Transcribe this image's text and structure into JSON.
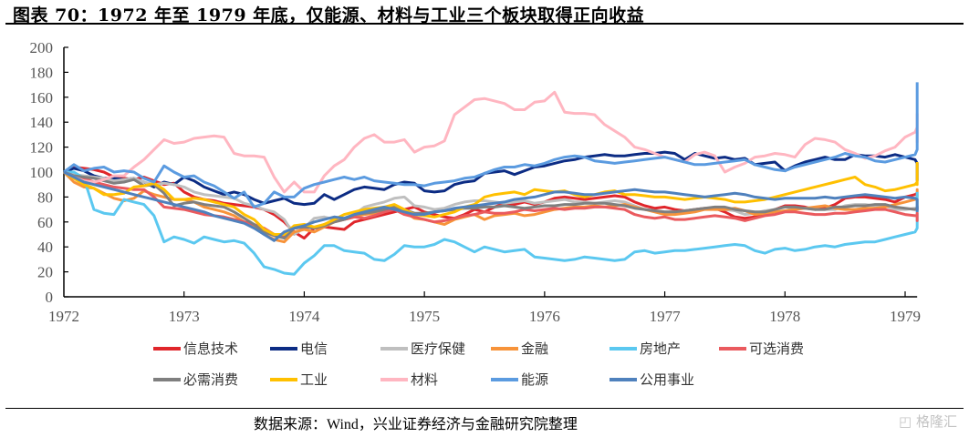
{
  "title": "图表 70：1972 年至 1979 年底，仅能源、材料与工业三个板块取得正向收益",
  "source": "数据来源：Wind，兴业证券经济与金融研究院整理",
  "watermark": "格隆汇",
  "watermark_icon": "glh-logo-icon",
  "chart_data": {
    "type": "line",
    "title": "1972 年至 1979 年底，仅能源、材料与工业三个板块取得正向收益",
    "xlabel": "",
    "ylabel": "",
    "ylim": [
      0,
      200
    ],
    "yticks": [
      0,
      20,
      40,
      60,
      80,
      100,
      120,
      140,
      160,
      180,
      200
    ],
    "xlim": [
      1972.0,
      1979.1
    ],
    "xticks": [
      1972,
      1973,
      1974,
      1975,
      1976,
      1977,
      1978,
      1979
    ],
    "grid": false,
    "legend_position": "bottom",
    "x_start": 1972.0,
    "x_step_years": 0.08333,
    "series": [
      {
        "name": "信息技术",
        "color": "#E0262B",
        "values": [
          100,
          104,
          103,
          102,
          100,
          96,
          95,
          94,
          96,
          93,
          90,
          91,
          84,
          80,
          78,
          77,
          75,
          74,
          73,
          72,
          70,
          66,
          60,
          52,
          47,
          55,
          56,
          55,
          54,
          60,
          62,
          64,
          66,
          68,
          70,
          72,
          68,
          66,
          64,
          63,
          66,
          70,
          68,
          72,
          75,
          74,
          76,
          74,
          76,
          79,
          80,
          79,
          78,
          79,
          80,
          81,
          80,
          76,
          73,
          71,
          72,
          70,
          69,
          70,
          71,
          71,
          68,
          64,
          63,
          64,
          66,
          70,
          73,
          73,
          72,
          70,
          71,
          74,
          79,
          80,
          80,
          79,
          78,
          76,
          80,
          82,
          83
        ]
      },
      {
        "name": "电信",
        "color": "#0C2C84",
        "values": [
          100,
          103,
          101,
          97,
          95,
          95,
          94,
          95,
          92,
          88,
          92,
          90,
          96,
          93,
          88,
          85,
          82,
          84,
          82,
          78,
          75,
          77,
          79,
          75,
          74,
          75,
          82,
          78,
          82,
          86,
          88,
          87,
          86,
          90,
          92,
          91,
          85,
          84,
          85,
          90,
          92,
          93,
          99,
          100,
          101,
          98,
          101,
          104,
          105,
          107,
          109,
          110,
          112,
          113,
          114,
          113,
          113,
          114,
          115,
          115,
          116,
          115,
          110,
          115,
          113,
          111,
          112,
          110,
          111,
          106,
          107,
          108,
          101,
          105,
          108,
          110,
          112,
          110,
          110,
          114,
          113,
          113,
          112,
          114,
          112,
          110,
          107,
          106,
          105,
          105,
          104,
          104,
          103,
          101,
          98,
          99,
          97,
          93
        ]
      },
      {
        "name": "医疗保健",
        "color": "#BFBFBF",
        "values": [
          100,
          98,
          97,
          96,
          95,
          93,
          94,
          95,
          92,
          90,
          91,
          90,
          88,
          84,
          82,
          81,
          80,
          79,
          75,
          73,
          70,
          68,
          62,
          50,
          55,
          63,
          64,
          62,
          63,
          66,
          72,
          74,
          76,
          79,
          80,
          73,
          72,
          70,
          71,
          74,
          76,
          77,
          77,
          76,
          75,
          76,
          77,
          75,
          76,
          77,
          78,
          76,
          76,
          75,
          76,
          77,
          76,
          73,
          70,
          69,
          68,
          68,
          69,
          70,
          71,
          70,
          70,
          69,
          66,
          67,
          69,
          70,
          72,
          71,
          71,
          70,
          70,
          70,
          73,
          74,
          74,
          73,
          73,
          70,
          70,
          71,
          71,
          72,
          73,
          72,
          70,
          70,
          71,
          71,
          70,
          70,
          71,
          71,
          70
        ]
      },
      {
        "name": "金融",
        "color": "#F7933A",
        "values": [
          100,
          92,
          88,
          87,
          83,
          79,
          77,
          79,
          85,
          82,
          80,
          78,
          78,
          76,
          72,
          70,
          68,
          65,
          60,
          56,
          50,
          46,
          44,
          52,
          54,
          52,
          56,
          60,
          62,
          64,
          66,
          67,
          69,
          72,
          68,
          63,
          62,
          60,
          58,
          62,
          64,
          66,
          62,
          65,
          66,
          67,
          65,
          66,
          68,
          70,
          71,
          72,
          72,
          73,
          72,
          73,
          74,
          72,
          70,
          68,
          66,
          66,
          67,
          68,
          70,
          70,
          70,
          71,
          69,
          66,
          67,
          68,
          69,
          70,
          71,
          72,
          73,
          71,
          70,
          70,
          71,
          71,
          72,
          74,
          76,
          78,
          80,
          82,
          84,
          86,
          85,
          83,
          80,
          82,
          84,
          85,
          84,
          85
        ]
      },
      {
        "name": "房地产",
        "color": "#5BC8F0",
        "values": [
          100,
          100,
          95,
          70,
          67,
          66,
          78,
          76,
          74,
          65,
          44,
          48,
          46,
          43,
          48,
          46,
          44,
          45,
          43,
          35,
          24,
          22,
          19,
          18,
          27,
          33,
          41,
          41,
          37,
          36,
          35,
          30,
          29,
          34,
          41,
          40,
          40,
          42,
          46,
          44,
          40,
          36,
          40,
          38,
          36,
          37,
          38,
          32,
          31,
          30,
          29,
          30,
          32,
          31,
          30,
          29,
          30,
          36,
          37,
          35,
          36,
          37,
          37,
          38,
          39,
          40,
          41,
          42,
          41,
          37,
          35,
          38,
          39,
          37,
          38,
          40,
          41,
          40,
          42,
          43,
          44,
          44,
          46,
          48,
          50,
          52,
          55,
          57,
          60,
          62,
          62,
          60,
          61,
          60,
          64,
          68,
          73,
          84
        ]
      },
      {
        "name": "可选消费",
        "color": "#EA5A5E",
        "values": [
          100,
          97,
          95,
          92,
          90,
          88,
          87,
          86,
          86,
          80,
          72,
          71,
          70,
          68,
          66,
          65,
          64,
          62,
          60,
          58,
          55,
          50,
          48,
          55,
          56,
          55,
          58,
          60,
          62,
          64,
          63,
          65,
          68,
          70,
          66,
          64,
          62,
          60,
          61,
          63,
          65,
          66,
          68,
          67,
          67,
          68,
          70,
          69,
          70,
          71,
          70,
          71,
          71,
          72,
          72,
          71,
          70,
          66,
          64,
          63,
          64,
          62,
          62,
          63,
          64,
          65,
          64,
          63,
          61,
          63,
          65,
          66,
          68,
          68,
          67,
          66,
          66,
          67,
          67,
          68,
          69,
          70,
          70,
          68,
          66,
          65,
          65,
          66,
          67,
          66,
          64,
          63,
          64,
          65,
          64,
          63,
          62,
          61,
          62
        ]
      },
      {
        "name": "必需消费",
        "color": "#7F7F7F",
        "values": [
          100,
          97,
          96,
          95,
          93,
          91,
          92,
          94,
          89,
          90,
          83,
          73,
          75,
          76,
          74,
          73,
          72,
          68,
          63,
          58,
          52,
          49,
          47,
          55,
          56,
          55,
          57,
          60,
          62,
          66,
          67,
          68,
          70,
          72,
          70,
          67,
          67,
          68,
          69,
          70,
          71,
          71,
          72,
          72,
          73,
          72,
          71,
          72,
          73,
          73,
          74,
          74,
          75,
          75,
          75,
          74,
          73,
          71,
          70,
          69,
          68,
          68,
          69,
          70,
          71,
          72,
          72,
          70,
          69,
          68,
          68,
          70,
          72,
          72,
          71,
          70,
          70,
          72,
          72,
          73,
          73,
          74,
          74,
          72,
          71,
          70,
          71,
          72,
          72,
          71,
          70,
          70,
          71,
          71,
          70,
          70,
          71,
          71,
          70
        ]
      },
      {
        "name": "工业",
        "color": "#FFC000",
        "values": [
          100,
          95,
          90,
          87,
          82,
          82,
          83,
          88,
          89,
          91,
          86,
          78,
          78,
          79,
          78,
          76,
          74,
          72,
          66,
          62,
          54,
          50,
          50,
          57,
          58,
          56,
          58,
          62,
          66,
          68,
          70,
          71,
          72,
          74,
          70,
          66,
          65,
          64,
          66,
          68,
          72,
          74,
          80,
          82,
          83,
          84,
          82,
          86,
          85,
          84,
          85,
          82,
          80,
          82,
          84,
          85,
          82,
          82,
          81,
          80,
          80,
          79,
          78,
          79,
          80,
          79,
          78,
          76,
          76,
          77,
          78,
          80,
          82,
          84,
          86,
          88,
          90,
          92,
          94,
          96,
          90,
          88,
          85,
          86,
          88,
          90,
          92,
          94,
          96,
          98,
          96,
          94,
          92,
          90,
          94,
          98,
          104,
          108
        ]
      },
      {
        "name": "材料",
        "color": "#FFB6C1",
        "values": [
          100,
          96,
          93,
          92,
          94,
          97,
          97,
          104,
          110,
          118,
          126,
          123,
          124,
          127,
          128,
          129,
          128,
          115,
          113,
          113,
          112,
          96,
          84,
          92,
          84,
          84,
          97,
          105,
          110,
          120,
          127,
          130,
          124,
          124,
          126,
          116,
          120,
          121,
          125,
          146,
          152,
          158,
          159,
          157,
          155,
          150,
          150,
          156,
          157,
          164,
          148,
          147,
          147,
          146,
          138,
          133,
          128,
          120,
          118,
          115,
          112,
          110,
          108,
          114,
          116,
          113,
          100,
          104,
          107,
          112,
          113,
          115,
          114,
          112,
          122,
          127,
          126,
          124,
          118,
          115,
          111,
          113,
          117,
          120,
          128,
          132,
          136,
          129,
          131,
          129,
          133,
          142,
          141,
          125,
          124,
          132,
          140,
          147
        ]
      },
      {
        "name": "能源",
        "color": "#5B9BE0",
        "values": [
          100,
          106,
          101,
          103,
          104,
          100,
          101,
          100,
          95,
          92,
          105,
          100,
          96,
          97,
          92,
          89,
          84,
          79,
          84,
          72,
          75,
          84,
          80,
          80,
          87,
          90,
          92,
          94,
          96,
          94,
          96,
          93,
          92,
          91,
          90,
          90,
          89,
          91,
          92,
          93,
          95,
          96,
          99,
          102,
          104,
          104,
          106,
          105,
          107,
          110,
          112,
          113,
          112,
          109,
          108,
          107,
          108,
          109,
          110,
          111,
          112,
          110,
          108,
          106,
          106,
          107,
          108,
          109,
          110,
          106,
          104,
          102,
          101,
          104,
          106,
          108,
          110,
          112,
          115,
          113,
          112,
          109,
          108,
          110,
          112,
          114,
          118,
          121,
          124,
          126,
          130,
          132,
          134,
          140,
          145,
          148,
          143,
          152,
          152,
          172
        ]
      },
      {
        "name": "公用事业",
        "color": "#4F81BD",
        "values": [
          100,
          96,
          92,
          90,
          88,
          86,
          84,
          82,
          80,
          78,
          76,
          74,
          72,
          70,
          68,
          65,
          63,
          61,
          59,
          55,
          50,
          45,
          52,
          55,
          57,
          60,
          62,
          64,
          63,
          66,
          68,
          70,
          72,
          70,
          68,
          66,
          66,
          68,
          69,
          71,
          72,
          73,
          74,
          75,
          76,
          78,
          79,
          80,
          82,
          84,
          84,
          83,
          82,
          82,
          83,
          84,
          85,
          86,
          85,
          84,
          84,
          83,
          82,
          81,
          80,
          81,
          82,
          83,
          82,
          80,
          79,
          78,
          79,
          79,
          79,
          79,
          80,
          79,
          80,
          81,
          82,
          81,
          80,
          79,
          80,
          79,
          78,
          76,
          75,
          74,
          74,
          73,
          73,
          72,
          70,
          70,
          69,
          70,
          68
        ]
      }
    ]
  }
}
